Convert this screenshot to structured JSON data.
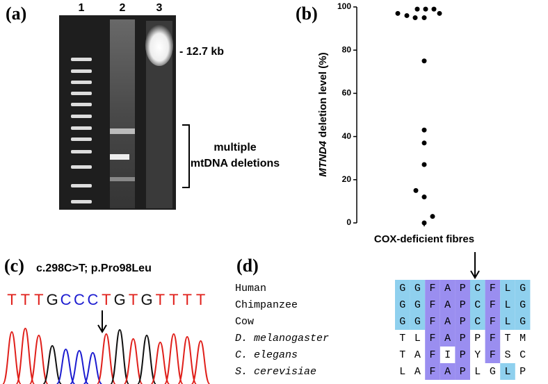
{
  "panel_a": {
    "label": "(a)",
    "lanes": [
      "1",
      "2",
      "3"
    ],
    "size_marker": "- 12.7 kb",
    "annotation": [
      "multiple",
      "mtDNA deletions"
    ]
  },
  "chart_data": {
    "type": "strip",
    "panel_label": "(b)",
    "y_label": {
      "gene": "MTND4",
      "text": "deletion level (%)"
    },
    "categories": [
      "COX-deficient fibres"
    ],
    "values": [
      99,
      99,
      99,
      97,
      97,
      96,
      95,
      95,
      75,
      43,
      37,
      27,
      15,
      12,
      3,
      0
    ],
    "color": "#000000",
    "ylim": [
      0,
      100
    ],
    "yticks": [
      0,
      20,
      40,
      60,
      80,
      100
    ]
  },
  "panel_c": {
    "label": "(c)",
    "mutation": "c.298C>T; p.Pro98Leu",
    "sequence": [
      "T",
      "T",
      "T",
      "G",
      "C",
      "C",
      "C",
      "T",
      "G",
      "T",
      "G",
      "T",
      "T",
      "T",
      "T"
    ]
  },
  "panel_d": {
    "label": "(d)",
    "alignment": [
      {
        "species": "Human",
        "residues": [
          "G",
          "G",
          "F",
          "A",
          "P",
          "C",
          "F",
          "L",
          "G"
        ]
      },
      {
        "species": "Chimpanzee",
        "residues": [
          "G",
          "G",
          "F",
          "A",
          "P",
          "C",
          "F",
          "L",
          "G"
        ]
      },
      {
        "species": "Cow",
        "residues": [
          "G",
          "G",
          "F",
          "A",
          "P",
          "C",
          "F",
          "L",
          "G"
        ]
      },
      {
        "species": "D. melanogaster",
        "residues": [
          "T",
          "L",
          "F",
          "A",
          "P",
          "P",
          "F",
          "T",
          "M"
        ]
      },
      {
        "species": "C. elegans",
        "residues": [
          "T",
          "A",
          "F",
          "I",
          "P",
          "Y",
          "F",
          "S",
          "C"
        ]
      },
      {
        "species": "S. cerevisiae",
        "residues": [
          "L",
          "A",
          "F",
          "A",
          "P",
          "L",
          "G",
          "L",
          "P"
        ]
      }
    ]
  }
}
